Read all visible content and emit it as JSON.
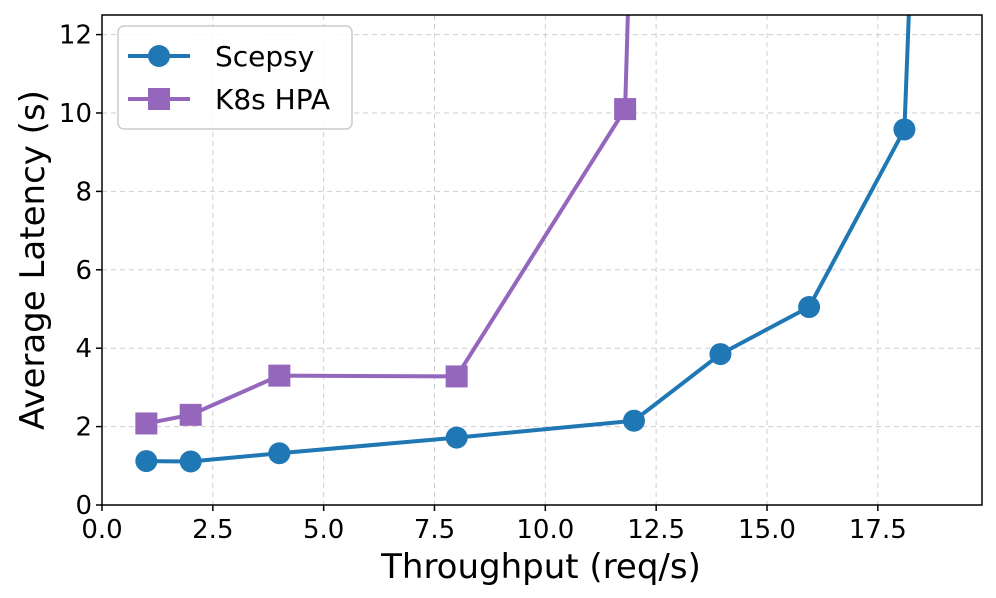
{
  "chart_data": {
    "type": "line",
    "title": "",
    "xlabel": "Throughput (req/s)",
    "ylabel": "Average Latency (s)",
    "xlim": [
      0.0,
      19.85
    ],
    "ylim": [
      0,
      12.5
    ],
    "xticks": [
      0.0,
      2.5,
      5.0,
      7.5,
      10.0,
      12.5,
      15.0,
      17.5
    ],
    "xtick_labels": [
      "0.0",
      "2.5",
      "5.0",
      "7.5",
      "10.0",
      "12.5",
      "15.0",
      "17.5"
    ],
    "yticks": [
      0,
      2,
      4,
      6,
      8,
      10,
      12
    ],
    "ytick_labels": [
      "0",
      "2",
      "4",
      "6",
      "8",
      "10",
      "12"
    ],
    "grid": true,
    "legend_position": "top-left",
    "series": [
      {
        "name": "Scepsy",
        "color": "#1f77b4",
        "marker": "circle",
        "points": [
          {
            "x": 1.0,
            "y": 1.12
          },
          {
            "x": 2.0,
            "y": 1.11
          },
          {
            "x": 4.0,
            "y": 1.32
          },
          {
            "x": 8.0,
            "y": 1.72
          },
          {
            "x": 12.0,
            "y": 2.15
          },
          {
            "x": 13.95,
            "y": 3.85
          },
          {
            "x": 15.95,
            "y": 5.05
          },
          {
            "x": 18.1,
            "y": 9.58
          }
        ],
        "offscale_tail": {
          "x": 18.25,
          "y": 14.0
        }
      },
      {
        "name": "K8s HPA",
        "color": "#9467bd",
        "marker": "square",
        "points": [
          {
            "x": 1.0,
            "y": 2.08
          },
          {
            "x": 2.0,
            "y": 2.3
          },
          {
            "x": 4.0,
            "y": 3.3
          },
          {
            "x": 8.0,
            "y": 3.28
          },
          {
            "x": 11.8,
            "y": 10.1
          }
        ],
        "offscale_tail": {
          "x": 11.9,
          "y": 14.0
        }
      }
    ]
  }
}
